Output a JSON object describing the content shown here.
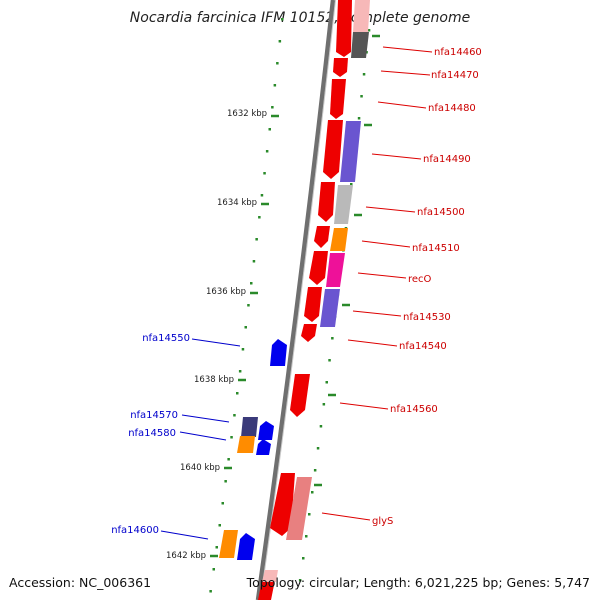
{
  "title": "Nocardia farcinica IFM 10152, complete genome",
  "accession": "Accession: NC_006361",
  "topology": "Topology: circular; Length: 6,021,225 bp; Genes: 5,747",
  "scale_ticks": [
    "1632 kbp",
    "1634 kbp",
    "1636 kbp",
    "1638 kbp",
    "1640 kbp",
    "1642 kbp"
  ],
  "genes_right": [
    {
      "label": "nfa14460",
      "color": "#cc0000"
    },
    {
      "label": "nfa14470",
      "color": "#cc0000"
    },
    {
      "label": "nfa14480",
      "color": "#cc0000"
    },
    {
      "label": "nfa14490",
      "color": "#cc0000"
    },
    {
      "label": "nfa14500",
      "color": "#cc0000"
    },
    {
      "label": "nfa14510",
      "color": "#cc0000"
    },
    {
      "label": "recO",
      "color": "#cc0000"
    },
    {
      "label": "nfa14530",
      "color": "#cc0000"
    },
    {
      "label": "nfa14540",
      "color": "#cc0000"
    },
    {
      "label": "nfa14560",
      "color": "#cc0000"
    },
    {
      "label": "glyS",
      "color": "#cc0000"
    }
  ],
  "genes_left": [
    {
      "label": "nfa14550",
      "color": "#0000cc"
    },
    {
      "label": "nfa14570",
      "color": "#0000cc"
    },
    {
      "label": "nfa14580",
      "color": "#0000cc"
    },
    {
      "label": "nfa14600",
      "color": "#0000cc"
    }
  ],
  "colors": {
    "forward_strand": "#ee0000",
    "reverse_strand": "#0000ee",
    "backbone": "#777777",
    "tick": "#2a8a2a",
    "pink": "#ee1199",
    "orange": "#ff8c00",
    "purple": "#6655cc",
    "gray": "#666666",
    "lightgray": "#bbbbbb",
    "salmon": "#e88080"
  }
}
